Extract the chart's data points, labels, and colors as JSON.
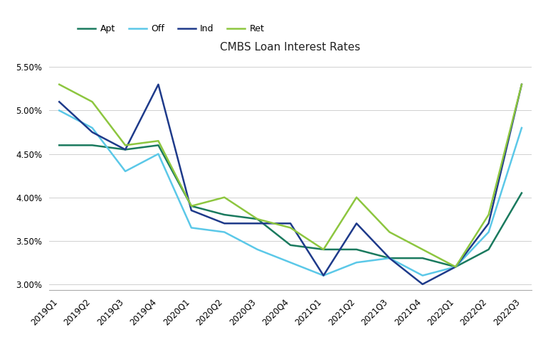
{
  "title": "CMBS Loan Interest Rates",
  "labels": [
    "2019Q1",
    "2019Q2",
    "2019Q3",
    "2019Q4",
    "2020Q1",
    "2020Q2",
    "2020Q3",
    "2020Q4",
    "2021Q1",
    "2021Q2",
    "2021Q3",
    "2021Q4",
    "2022Q1",
    "2022Q2",
    "2022Q3"
  ],
  "series": {
    "Apt": [
      0.046,
      0.046,
      0.0455,
      0.046,
      0.039,
      0.038,
      0.0375,
      0.0345,
      0.034,
      0.034,
      0.033,
      0.033,
      0.032,
      0.034,
      0.0405
    ],
    "Off": [
      0.05,
      0.048,
      0.043,
      0.045,
      0.0365,
      0.036,
      0.034,
      0.0325,
      0.031,
      0.0325,
      0.033,
      0.031,
      0.032,
      0.036,
      0.048
    ],
    "Ind": [
      0.051,
      0.0475,
      0.0455,
      0.053,
      0.0385,
      0.037,
      0.037,
      0.037,
      0.031,
      0.037,
      0.033,
      0.03,
      0.032,
      0.037,
      0.053
    ],
    "Ret": [
      0.053,
      0.051,
      0.046,
      0.0465,
      0.039,
      0.04,
      0.0375,
      0.0365,
      0.034,
      0.04,
      0.036,
      0.034,
      0.032,
      0.038,
      0.053
    ]
  },
  "colors": {
    "Apt": "#1a7a5e",
    "Off": "#5bc8e8",
    "Ind": "#1e3a8a",
    "Ret": "#8dc63f"
  },
  "ylim": [
    0.0293,
    0.0562
  ],
  "yticks": [
    0.03,
    0.035,
    0.04,
    0.045,
    0.05,
    0.055
  ],
  "ytick_labels": [
    "3.00%",
    "3.50%",
    "4.00%",
    "4.50%",
    "5.00%",
    "5.50%"
  ],
  "background_color": "#ffffff",
  "grid_color": "#d0d0d0",
  "line_width": 1.8,
  "title_fontsize": 11,
  "legend_fontsize": 9,
  "tick_fontsize": 8.5
}
